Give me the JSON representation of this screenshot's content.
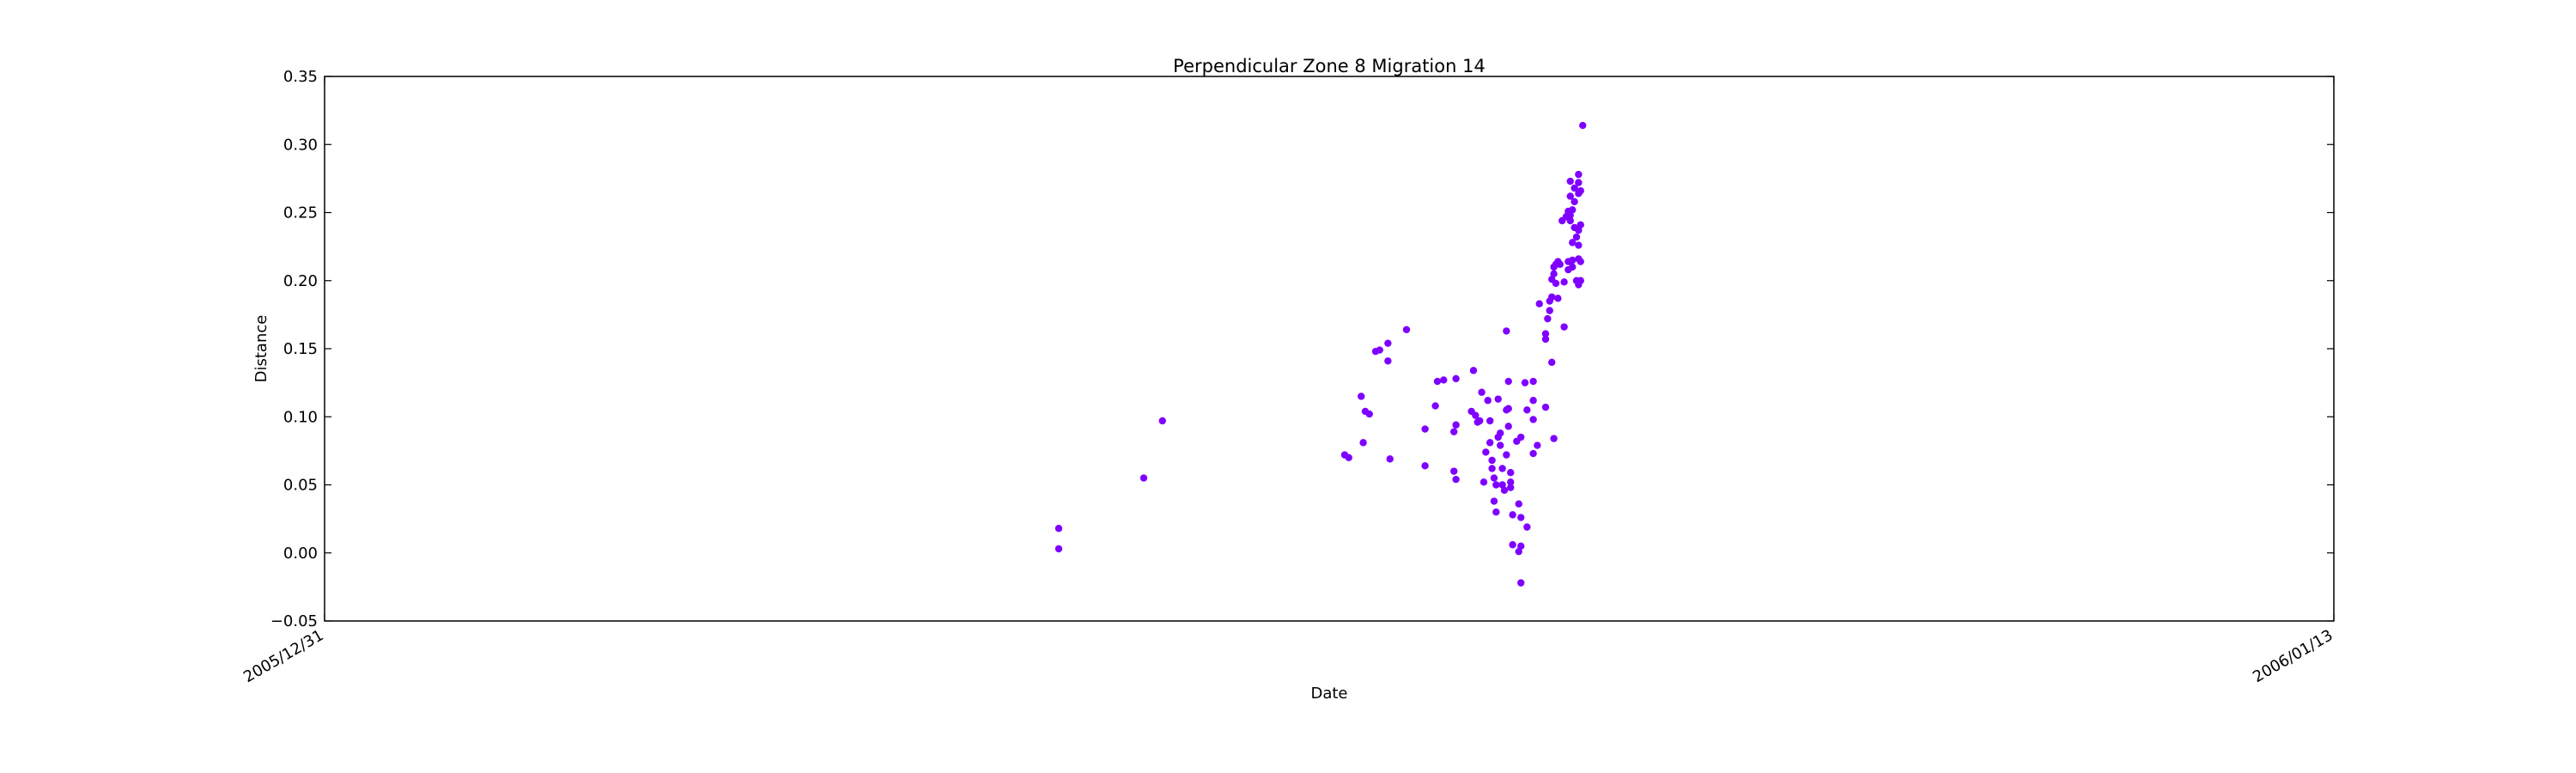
{
  "chart_data": {
    "type": "scatter",
    "title": "Perpendicular Zone 8 Migration 14",
    "xlabel": "Date",
    "ylabel": "Distance",
    "x_axis": {
      "type": "date",
      "range": [
        "2005/12/31",
        "2006/01/13"
      ],
      "tick_labels": [
        "2005/12/31",
        "2006/01/13"
      ]
    },
    "ylim": [
      -0.05,
      0.35
    ],
    "y_ticks": [
      "−0.05",
      "0.00",
      "0.05",
      "0.10",
      "0.15",
      "0.20",
      "0.25",
      "0.30",
      "0.35"
    ],
    "grid": false,
    "legend": "none",
    "marker_color": "#7f00ff",
    "series": [
      {
        "points": [
          {
            "x": "2006-01-04T18:00",
            "y": 0.018
          },
          {
            "x": "2006-01-04T18:00",
            "y": 0.003
          },
          {
            "x": "2006-01-05T07:12",
            "y": 0.055
          },
          {
            "x": "2006-01-05T10:06",
            "y": 0.097
          },
          {
            "x": "2006-01-06T14:24",
            "y": 0.072
          },
          {
            "x": "2006-01-06T15:02",
            "y": 0.07
          },
          {
            "x": "2006-01-06T16:58",
            "y": 0.115
          },
          {
            "x": "2006-01-06T17:36",
            "y": 0.104
          },
          {
            "x": "2006-01-06T18:14",
            "y": 0.102
          },
          {
            "x": "2006-01-06T17:17",
            "y": 0.081
          },
          {
            "x": "2006-01-06T19:12",
            "y": 0.148
          },
          {
            "x": "2006-01-06T19:50",
            "y": 0.149
          },
          {
            "x": "2006-01-06T21:07",
            "y": 0.154
          },
          {
            "x": "2006-01-06T21:07",
            "y": 0.141
          },
          {
            "x": "2006-01-06T21:26",
            "y": 0.069
          },
          {
            "x": "2006-01-07T00:00",
            "y": 0.164
          },
          {
            "x": "2006-01-07T02:53",
            "y": 0.091
          },
          {
            "x": "2006-01-07T02:53",
            "y": 0.064
          },
          {
            "x": "2006-01-07T04:48",
            "y": 0.126
          },
          {
            "x": "2006-01-07T04:29",
            "y": 0.108
          },
          {
            "x": "2006-01-07T05:46",
            "y": 0.127
          },
          {
            "x": "2006-01-07T07:41",
            "y": 0.128
          },
          {
            "x": "2006-01-07T07:41",
            "y": 0.094
          },
          {
            "x": "2006-01-07T07:22",
            "y": 0.089
          },
          {
            "x": "2006-01-07T07:22",
            "y": 0.06
          },
          {
            "x": "2006-01-07T07:41",
            "y": 0.054
          },
          {
            "x": "2006-01-07T10:05",
            "y": 0.104
          },
          {
            "x": "2006-01-07T10:24",
            "y": 0.134
          },
          {
            "x": "2006-01-07T10:43",
            "y": 0.101
          },
          {
            "x": "2006-01-07T11:02",
            "y": 0.096
          },
          {
            "x": "2006-01-07T11:22",
            "y": 0.097
          },
          {
            "x": "2006-01-07T11:41",
            "y": 0.118
          },
          {
            "x": "2006-01-07T12:00",
            "y": 0.052
          },
          {
            "x": "2006-01-07T12:19",
            "y": 0.074
          },
          {
            "x": "2006-01-07T12:38",
            "y": 0.112
          },
          {
            "x": "2006-01-07T12:58",
            "y": 0.081
          },
          {
            "x": "2006-01-07T12:58",
            "y": 0.097
          },
          {
            "x": "2006-01-07T13:17",
            "y": 0.068
          },
          {
            "x": "2006-01-07T13:17",
            "y": 0.062
          },
          {
            "x": "2006-01-07T13:36",
            "y": 0.055
          },
          {
            "x": "2006-01-07T13:36",
            "y": 0.038
          },
          {
            "x": "2006-01-07T13:55",
            "y": 0.05
          },
          {
            "x": "2006-01-07T13:55",
            "y": 0.03
          },
          {
            "x": "2006-01-07T14:14",
            "y": 0.085
          },
          {
            "x": "2006-01-07T14:14",
            "y": 0.113
          },
          {
            "x": "2006-01-07T14:34",
            "y": 0.088
          },
          {
            "x": "2006-01-07T14:34",
            "y": 0.079
          },
          {
            "x": "2006-01-07T14:53",
            "y": 0.062
          },
          {
            "x": "2006-01-07T14:53",
            "y": 0.05
          },
          {
            "x": "2006-01-07T15:12",
            "y": 0.046
          },
          {
            "x": "2006-01-07T15:31",
            "y": 0.105
          },
          {
            "x": "2006-01-07T15:31",
            "y": 0.072
          },
          {
            "x": "2006-01-07T15:31",
            "y": 0.163
          },
          {
            "x": "2006-01-07T15:50",
            "y": 0.126
          },
          {
            "x": "2006-01-07T15:50",
            "y": 0.106
          },
          {
            "x": "2006-01-07T15:50",
            "y": 0.093
          },
          {
            "x": "2006-01-07T16:10",
            "y": 0.059
          },
          {
            "x": "2006-01-07T16:10",
            "y": 0.052
          },
          {
            "x": "2006-01-07T16:10",
            "y": 0.048
          },
          {
            "x": "2006-01-07T16:29",
            "y": 0.028
          },
          {
            "x": "2006-01-07T16:29",
            "y": 0.006
          },
          {
            "x": "2006-01-07T17:07",
            "y": 0.082
          },
          {
            "x": "2006-01-07T17:26",
            "y": 0.036
          },
          {
            "x": "2006-01-07T17:26",
            "y": 0.001
          },
          {
            "x": "2006-01-07T17:46",
            "y": -0.022
          },
          {
            "x": "2006-01-07T17:46",
            "y": 0.005
          },
          {
            "x": "2006-01-07T17:46",
            "y": 0.085
          },
          {
            "x": "2006-01-07T17:46",
            "y": 0.026
          },
          {
            "x": "2006-01-07T18:24",
            "y": 0.125
          },
          {
            "x": "2006-01-07T18:43",
            "y": 0.105
          },
          {
            "x": "2006-01-07T18:43",
            "y": 0.019
          },
          {
            "x": "2006-01-07T19:41",
            "y": 0.126
          },
          {
            "x": "2006-01-07T19:41",
            "y": 0.112
          },
          {
            "x": "2006-01-07T19:41",
            "y": 0.098
          },
          {
            "x": "2006-01-07T19:41",
            "y": 0.073
          },
          {
            "x": "2006-01-07T20:19",
            "y": 0.079
          },
          {
            "x": "2006-01-07T20:38",
            "y": 0.183
          },
          {
            "x": "2006-01-07T21:36",
            "y": 0.161
          },
          {
            "x": "2006-01-07T21:36",
            "y": 0.157
          },
          {
            "x": "2006-01-07T21:36",
            "y": 0.107
          },
          {
            "x": "2006-01-07T21:55",
            "y": 0.172
          },
          {
            "x": "2006-01-07T22:14",
            "y": 0.178
          },
          {
            "x": "2006-01-07T22:14",
            "y": 0.185
          },
          {
            "x": "2006-01-07T22:34",
            "y": 0.14
          },
          {
            "x": "2006-01-07T22:34",
            "y": 0.188
          },
          {
            "x": "2006-01-07T22:34",
            "y": 0.201
          },
          {
            "x": "2006-01-07T22:53",
            "y": 0.205
          },
          {
            "x": "2006-01-07T22:53",
            "y": 0.21
          },
          {
            "x": "2006-01-07T22:53",
            "y": 0.084
          },
          {
            "x": "2006-01-07T23:12",
            "y": 0.212
          },
          {
            "x": "2006-01-07T23:12",
            "y": 0.198
          },
          {
            "x": "2006-01-07T23:31",
            "y": 0.214
          },
          {
            "x": "2006-01-07T23:31",
            "y": 0.187
          },
          {
            "x": "2006-01-07T23:50",
            "y": 0.212
          },
          {
            "x": "2006-01-08T00:10",
            "y": 0.244
          },
          {
            "x": "2006-01-08T00:29",
            "y": 0.199
          },
          {
            "x": "2006-01-08T00:29",
            "y": 0.166
          },
          {
            "x": "2006-01-08T00:48",
            "y": 0.247
          },
          {
            "x": "2006-01-08T01:07",
            "y": 0.251
          },
          {
            "x": "2006-01-08T01:07",
            "y": 0.208
          },
          {
            "x": "2006-01-08T01:07",
            "y": 0.214
          },
          {
            "x": "2006-01-08T01:26",
            "y": 0.273
          },
          {
            "x": "2006-01-08T01:26",
            "y": 0.262
          },
          {
            "x": "2006-01-08T01:26",
            "y": 0.248
          },
          {
            "x": "2006-01-08T01:26",
            "y": 0.244
          },
          {
            "x": "2006-01-08T01:46",
            "y": 0.252
          },
          {
            "x": "2006-01-08T01:46",
            "y": 0.228
          },
          {
            "x": "2006-01-08T01:46",
            "y": 0.215
          },
          {
            "x": "2006-01-08T01:46",
            "y": 0.21
          },
          {
            "x": "2006-01-08T02:05",
            "y": 0.268
          },
          {
            "x": "2006-01-08T02:05",
            "y": 0.258
          },
          {
            "x": "2006-01-08T02:05",
            "y": 0.239
          },
          {
            "x": "2006-01-08T02:24",
            "y": 0.232
          },
          {
            "x": "2006-01-08T02:24",
            "y": 0.2
          },
          {
            "x": "2006-01-08T02:43",
            "y": 0.278
          },
          {
            "x": "2006-01-08T02:43",
            "y": 0.272
          },
          {
            "x": "2006-01-08T02:43",
            "y": 0.264
          },
          {
            "x": "2006-01-08T02:43",
            "y": 0.237
          },
          {
            "x": "2006-01-08T02:43",
            "y": 0.226
          },
          {
            "x": "2006-01-08T02:43",
            "y": 0.216
          },
          {
            "x": "2006-01-08T02:43",
            "y": 0.197
          },
          {
            "x": "2006-01-08T03:02",
            "y": 0.266
          },
          {
            "x": "2006-01-08T03:02",
            "y": 0.241
          },
          {
            "x": "2006-01-08T03:02",
            "y": 0.214
          },
          {
            "x": "2006-01-08T03:02",
            "y": 0.2
          },
          {
            "x": "2006-01-08T03:22",
            "y": 0.314
          }
        ]
      }
    ]
  }
}
